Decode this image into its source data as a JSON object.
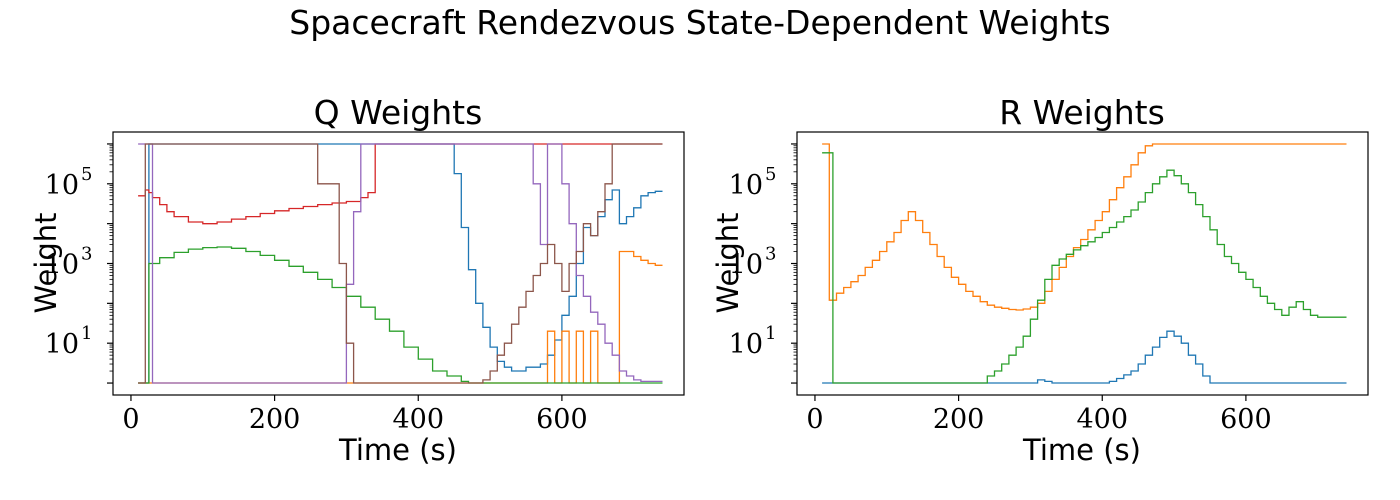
{
  "figure": {
    "title": "Spacecraft Rendezvous State-Dependent Weights"
  },
  "chart_data": [
    {
      "type": "line",
      "step": true,
      "title": "Q Weights",
      "xlabel": "Time (s)",
      "ylabel": "Weight",
      "xlim": [
        -25,
        770
      ],
      "ylim_log10": [
        -0.3,
        6.3
      ],
      "yscale": "log",
      "x_ticks": [
        "0",
        "200",
        "400",
        "600"
      ],
      "y_ticks": [
        {
          "base": "10",
          "exp": "1",
          "log10": 1
        },
        {
          "base": "10",
          "exp": "3",
          "log10": 3
        },
        {
          "base": "10",
          "exp": "5",
          "log10": 5
        }
      ],
      "series": [
        {
          "color": "#1f77b4",
          "x": [
            10,
            20,
            25,
            50,
            100,
            150,
            200,
            250,
            300,
            320,
            340,
            360,
            380,
            400,
            420,
            430,
            440,
            450,
            460,
            470,
            480,
            490,
            500,
            510,
            520,
            530,
            540,
            550,
            560,
            570,
            580,
            590,
            600,
            610,
            620,
            630,
            640,
            650,
            660,
            670,
            680,
            690,
            700,
            710,
            720,
            730,
            740
          ],
          "y": [
            1,
            1,
            1000000,
            1000000,
            1000000,
            1000000,
            1000000,
            1000000,
            1000000,
            1000000,
            1000000,
            1000000,
            1000000,
            1000000,
            1000000,
            1000000,
            1000000,
            180000,
            8000,
            700,
            100,
            25,
            8,
            3.5,
            2.5,
            2,
            2,
            2.5,
            2.5,
            3,
            5,
            12,
            50,
            150,
            1000,
            8000,
            5000,
            15000,
            40000,
            70000,
            10000,
            15000,
            25000,
            50000,
            60000,
            65000,
            65000
          ]
        },
        {
          "color": "#ff7f0e",
          "x": [
            10,
            20,
            50,
            100,
            200,
            300,
            400,
            500,
            550,
            560,
            570,
            580,
            590,
            600,
            610,
            620,
            630,
            640,
            650,
            660,
            670,
            680,
            690,
            700,
            710,
            720,
            730,
            740
          ],
          "y": [
            1,
            1,
            1,
            1,
            1,
            1,
            1,
            1,
            1,
            1,
            1,
            20,
            1,
            20,
            1,
            20,
            1,
            20,
            1,
            1,
            1,
            2000,
            2000,
            1500,
            1200,
            1000,
            900,
            900
          ]
        },
        {
          "color": "#2ca02c",
          "x": [
            10,
            20,
            25,
            40,
            60,
            80,
            100,
            120,
            140,
            160,
            180,
            200,
            220,
            240,
            260,
            280,
            300,
            320,
            340,
            360,
            380,
            400,
            420,
            440,
            460,
            470,
            480,
            500,
            550,
            600,
            650,
            700,
            740
          ],
          "y": [
            1,
            1,
            1000,
            1400,
            1900,
            2300,
            2500,
            2600,
            2400,
            2000,
            1600,
            1200,
            850,
            600,
            400,
            250,
            150,
            80,
            40,
            20,
            8,
            4,
            2,
            1.5,
            1.1,
            1,
            1,
            1,
            1,
            1,
            1,
            1,
            1
          ]
        },
        {
          "color": "#d62728",
          "x": [
            10,
            20,
            25,
            30,
            40,
            50,
            60,
            80,
            100,
            120,
            140,
            160,
            180,
            200,
            220,
            240,
            260,
            280,
            300,
            320,
            330,
            340,
            740
          ],
          "y": [
            50000,
            70000,
            60000,
            45000,
            30000,
            20000,
            15000,
            11000,
            10000,
            11000,
            13000,
            15000,
            18000,
            21000,
            24000,
            27000,
            30000,
            33000,
            36000,
            45000,
            60000,
            1000000,
            1000000
          ]
        },
        {
          "color": "#9467bd",
          "x": [
            10,
            20,
            30,
            100,
            200,
            290,
            300,
            310,
            320,
            330,
            340,
            350,
            360,
            400,
            500,
            540,
            560,
            570,
            580,
            590,
            600,
            610,
            620,
            630,
            640,
            650,
            660,
            670,
            680,
            690,
            700,
            710,
            720,
            740
          ],
          "y": [
            1000000,
            1000000,
            1,
            1,
            1,
            1,
            300,
            20000,
            1000000,
            1000000,
            1000000,
            1000000,
            1000000,
            1000000,
            1000000,
            1000000,
            100000,
            3000,
            1000000,
            1000000,
            100000,
            10000,
            500,
            150,
            60,
            30,
            10,
            5,
            2,
            1.5,
            1.2,
            1.1,
            1.1,
            1.1
          ]
        },
        {
          "color": "#8c564b",
          "x": [
            10,
            20,
            100,
            200,
            240,
            250,
            260,
            270,
            280,
            290,
            300,
            310,
            320,
            330,
            350,
            400,
            450,
            480,
            490,
            500,
            510,
            520,
            530,
            540,
            550,
            560,
            570,
            580,
            590,
            600,
            610,
            620,
            630,
            640,
            650,
            660,
            670,
            700,
            740
          ],
          "y": [
            1,
            1000000,
            1000000,
            1000000,
            1000000,
            1000000,
            100000,
            100000,
            100000,
            1000,
            10,
            1,
            1,
            1,
            1,
            1,
            1,
            1,
            1.2,
            2,
            5,
            10,
            30,
            80,
            200,
            500,
            1000,
            3000,
            1000,
            200,
            1000,
            2000,
            10000,
            5000,
            20000,
            100000,
            1000000,
            1000000,
            1000000
          ]
        }
      ]
    },
    {
      "type": "line",
      "step": true,
      "title": "R Weights",
      "xlabel": "Time (s)",
      "ylabel": "Weight",
      "xlim": [
        -25,
        770
      ],
      "ylim_log10": [
        -0.3,
        6.3
      ],
      "yscale": "log",
      "x_ticks": [
        "0",
        "200",
        "400",
        "600"
      ],
      "y_ticks": [
        {
          "base": "10",
          "exp": "1",
          "log10": 1
        },
        {
          "base": "10",
          "exp": "3",
          "log10": 3
        },
        {
          "base": "10",
          "exp": "5",
          "log10": 5
        }
      ],
      "series": [
        {
          "color": "#1f77b4",
          "x": [
            10,
            100,
            200,
            300,
            310,
            320,
            330,
            400,
            410,
            420,
            430,
            440,
            450,
            460,
            470,
            480,
            490,
            500,
            510,
            520,
            530,
            540,
            550,
            560,
            600,
            700,
            740
          ],
          "y": [
            1,
            1,
            1,
            1,
            1.2,
            1.1,
            1,
            1,
            1.1,
            1.3,
            1.6,
            2,
            3,
            5,
            8,
            14,
            20,
            15,
            10,
            5,
            3,
            1.5,
            1,
            1,
            1,
            1,
            1
          ]
        },
        {
          "color": "#ff7f0e",
          "x": [
            10,
            20,
            30,
            40,
            50,
            60,
            70,
            80,
            90,
            100,
            110,
            120,
            130,
            140,
            150,
            160,
            170,
            180,
            190,
            200,
            210,
            220,
            230,
            240,
            250,
            260,
            270,
            280,
            290,
            300,
            310,
            320,
            330,
            340,
            350,
            360,
            370,
            380,
            390,
            400,
            410,
            420,
            430,
            440,
            450,
            460,
            470,
            500,
            600,
            700,
            740
          ],
          "y": [
            1000000,
            120,
            180,
            250,
            350,
            500,
            800,
            1200,
            2000,
            3500,
            6000,
            12000,
            20000,
            12000,
            6000,
            3000,
            1500,
            800,
            450,
            300,
            200,
            150,
            110,
            90,
            80,
            75,
            70,
            68,
            72,
            80,
            100,
            200,
            400,
            800,
            1500,
            2500,
            4000,
            7000,
            12000,
            20000,
            40000,
            80000,
            150000,
            300000,
            600000,
            900000,
            1000000,
            1000000,
            1000000,
            1000000,
            1000000
          ]
        },
        {
          "color": "#2ca02c",
          "x": [
            10,
            20,
            25,
            50,
            100,
            150,
            200,
            230,
            240,
            250,
            260,
            270,
            280,
            290,
            300,
            310,
            320,
            330,
            340,
            350,
            360,
            370,
            380,
            390,
            400,
            410,
            420,
            430,
            440,
            450,
            460,
            470,
            480,
            490,
            500,
            510,
            520,
            530,
            540,
            550,
            560,
            570,
            580,
            590,
            600,
            610,
            620,
            630,
            640,
            650,
            660,
            670,
            680,
            690,
            700,
            710,
            720,
            740
          ],
          "y": [
            600000,
            600000,
            1,
            1,
            1,
            1,
            1,
            1,
            1.5,
            2,
            3,
            5,
            8,
            15,
            40,
            120,
            400,
            900,
            1300,
            1700,
            2200,
            2800,
            3500,
            4500,
            6000,
            8000,
            11000,
            15000,
            22000,
            35000,
            60000,
            100000,
            150000,
            220000,
            160000,
            100000,
            60000,
            30000,
            15000,
            7000,
            3000,
            1500,
            1000,
            600,
            400,
            250,
            150,
            100,
            70,
            50,
            80,
            110,
            70,
            50,
            45,
            45,
            45,
            45
          ]
        }
      ]
    }
  ]
}
